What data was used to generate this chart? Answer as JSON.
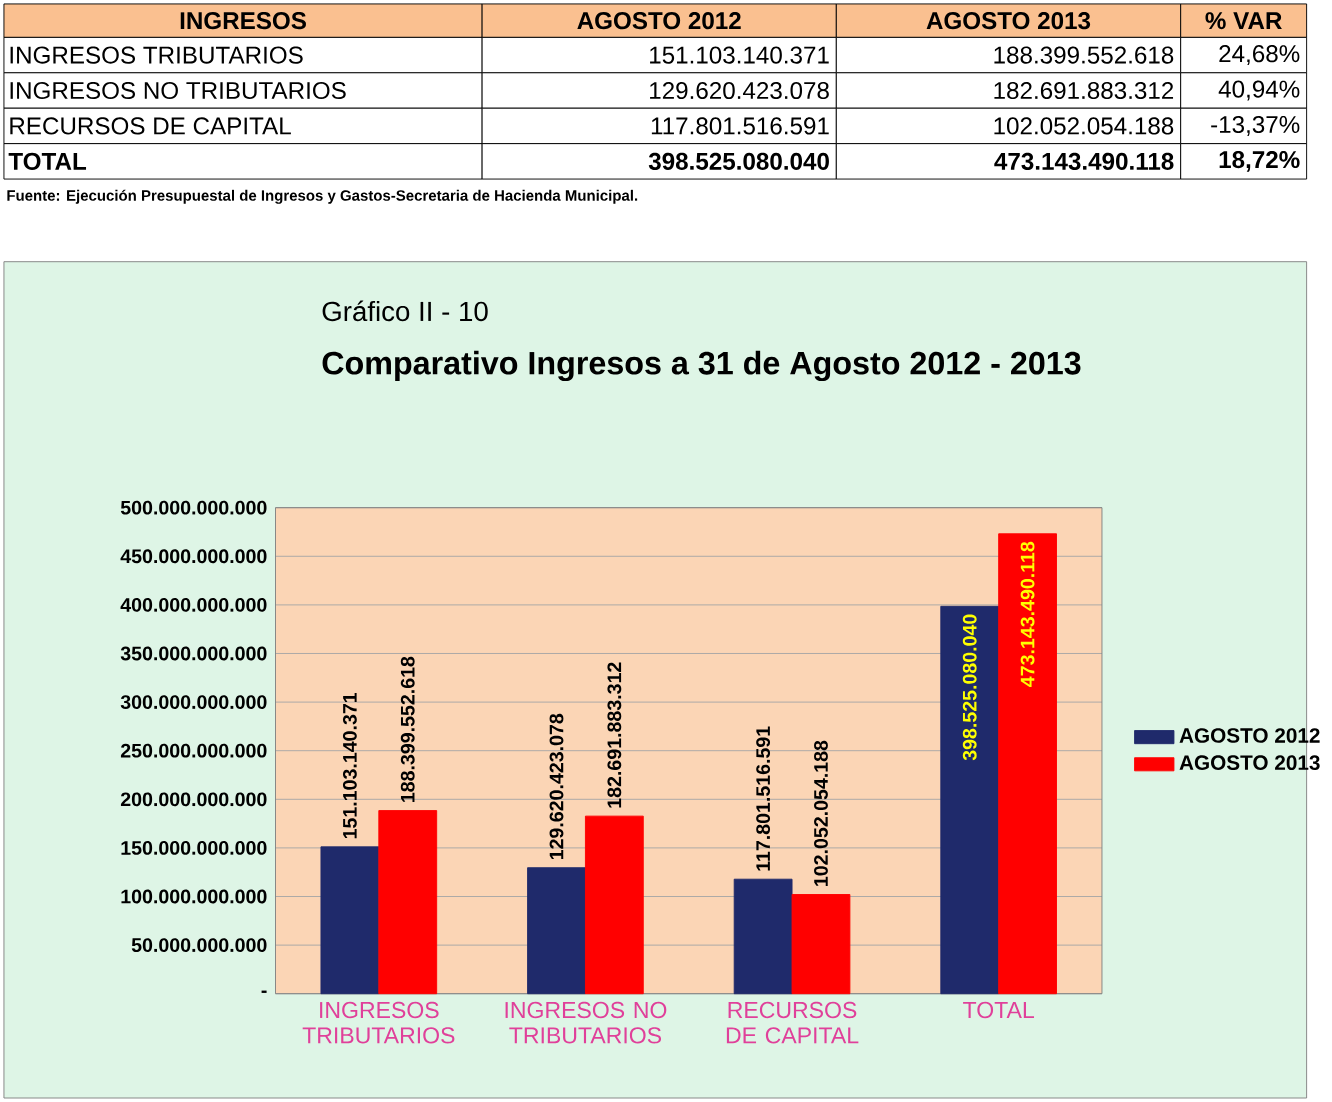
{
  "chart_data": {
    "type": "bar",
    "subtitle": "Gráfico II - 10",
    "title": "Comparativo Ingresos a 31 de Agosto 2012 - 2013",
    "categories": [
      "INGRESOS TRIBUTARIOS",
      "INGRESOS NO TRIBUTARIOS",
      "RECURSOS DE CAPITAL",
      "TOTAL"
    ],
    "series": [
      {
        "name": "AGOSTO 2012",
        "color": "#1f2a6b",
        "values": [
          151103140371,
          129620423078,
          117801516591,
          398525080040
        ],
        "value_labels": [
          "151.103.140.371",
          "129.620.423.078",
          "117.801.516.591",
          "398.525.080.040"
        ]
      },
      {
        "name": "AGOSTO 2013",
        "color": "#ff0000",
        "values": [
          188399552618,
          182691883312,
          102052054188,
          473143490118
        ],
        "value_labels": [
          "188.399.552.618",
          "182.691.883.312",
          "102.052.054.188",
          "473.143.490.118"
        ]
      }
    ],
    "ylim": [
      0,
      500000000000
    ],
    "yticks": [
      {
        "value": 0,
        "label": "-"
      },
      {
        "value": 50000000000,
        "label": "50.000.000.000"
      },
      {
        "value": 100000000000,
        "label": "100.000.000.000"
      },
      {
        "value": 150000000000,
        "label": "150.000.000.000"
      },
      {
        "value": 200000000000,
        "label": "200.000.000.000"
      },
      {
        "value": 250000000000,
        "label": "250.000.000.000"
      },
      {
        "value": 300000000000,
        "label": "300.000.000.000"
      },
      {
        "value": 350000000000,
        "label": "350.000.000.000"
      },
      {
        "value": 400000000000,
        "label": "400.000.000.000"
      },
      {
        "value": 450000000000,
        "label": "450.000.000.000"
      },
      {
        "value": 500000000000,
        "label": "500.000.000.000"
      }
    ],
    "grid": "y",
    "legend": "right",
    "annotations": [
      "INGRESOS",
      "AGOSTO 2012",
      "AGOSTO 2013",
      "% VAR",
      "INGRESOS TRIBUTARIOS",
      "151.103.140.371",
      "188.399.552.618",
      "24,68%",
      "INGRESOS NO TRIBUTARIOS",
      "129.620.423.078",
      "182.691.883.312",
      "40,94%",
      "RECURSOS DE CAPITAL",
      "117.801.516.591",
      "102.052.054.188",
      "-13,37%",
      "TOTAL",
      "398.525.080.040",
      "473.143.490.118",
      "18,72%",
      "Fuente: Ejecución Presupuestal de Ingresos y Gastos-Secretaria de Hacienda Municipal."
    ]
  }
}
